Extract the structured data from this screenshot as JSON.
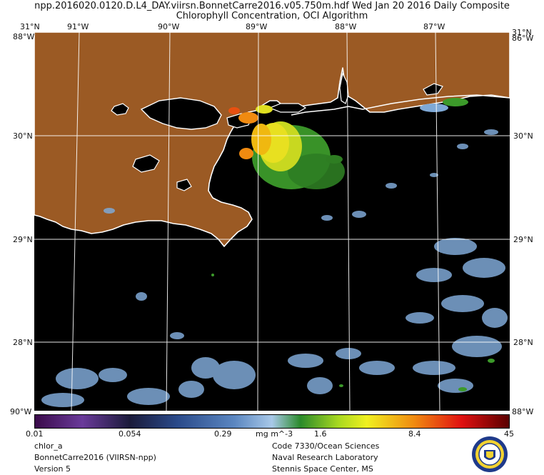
{
  "title": {
    "line1": "npp.2016020.0120.D.L4_DAY.viirsn.BonnetCarre2016.v05.750m.hdf    Wed Jan 20 2016 Daily Composite",
    "line2": "Chlorophyll Concentration, OCI Algorithm"
  },
  "axes": {
    "top_lon": [
      "91°W",
      "90°W",
      "89°W",
      "88°W",
      "87°W"
    ],
    "lat": [
      "30°N",
      "29°N",
      "28°N"
    ],
    "corner_top_left_lat": "31°N",
    "corner_top_left_lon": "88°W",
    "corner_top_right_lat": "31°N",
    "corner_top_right_lon": "86°W",
    "corner_bottom_left": "90°W",
    "corner_bottom_right": "88°W"
  },
  "colorbar": {
    "ticks": [
      "0.01",
      "0.054",
      "0.29",
      "1.6",
      "8.4",
      "45"
    ],
    "unit": "mg m^-3"
  },
  "footer": {
    "left": [
      "chlor_a",
      "BonnetCarre2016 (VIIRSN-npp)",
      "Version 5"
    ],
    "right": [
      "Code 7330/Ocean Sciences",
      "Naval Research Laboratory",
      "Stennis Space Center, MS"
    ]
  },
  "colors": {
    "land": "#9b5a24",
    "water": "#000000",
    "grid": "#ffffff",
    "coast": "#ffffff",
    "low_chl": "#7fa9d6",
    "mid_chl": "#3c9a2a",
    "high_chl": "#e8e020",
    "very_high_chl": "#f08a10"
  }
}
